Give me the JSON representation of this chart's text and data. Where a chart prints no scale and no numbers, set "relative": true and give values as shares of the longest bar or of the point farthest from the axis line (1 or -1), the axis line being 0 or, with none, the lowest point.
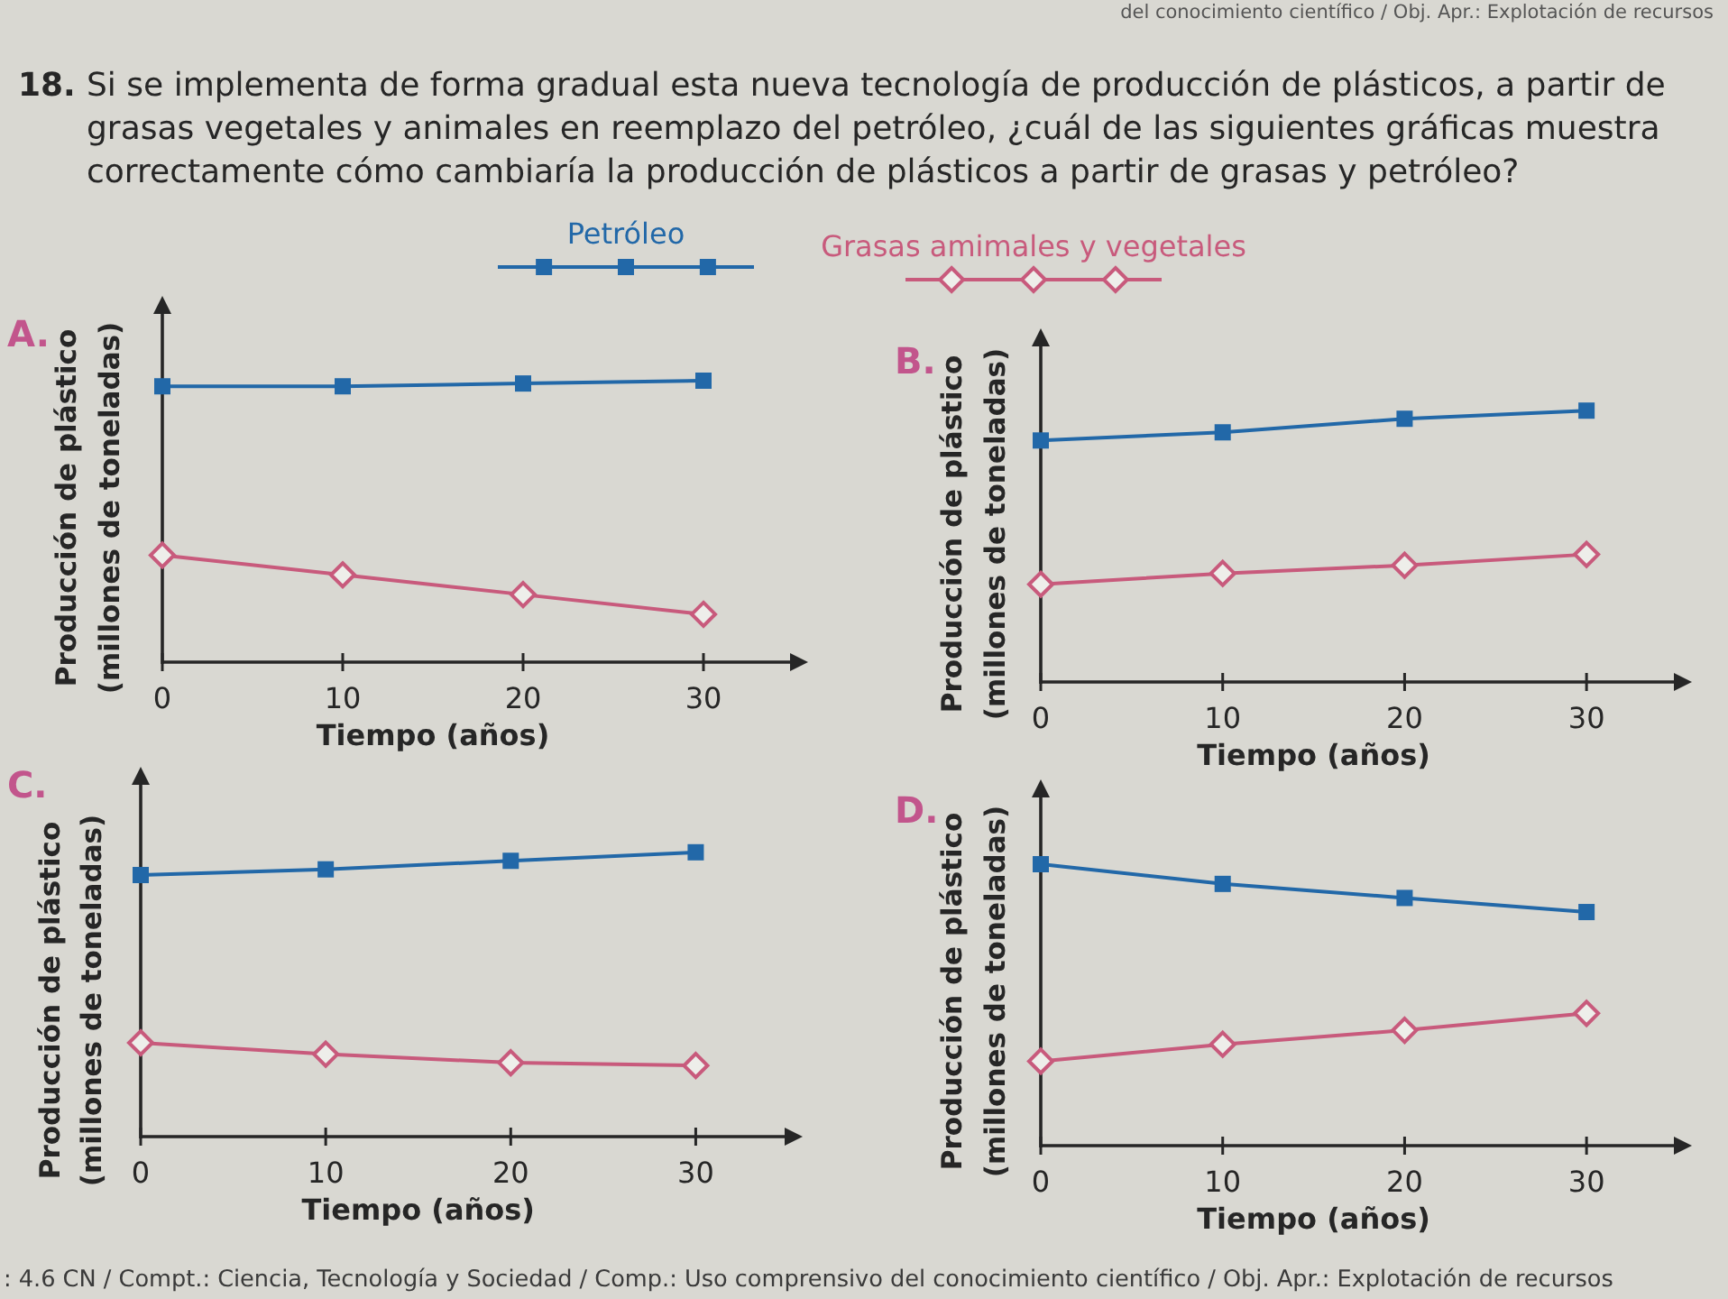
{
  "chart_data": [
    {
      "type": "other",
      "title": "18. Si se implementa de forma gradual esta nueva tecnología de producción de plásticos, a partir de grasas vegetales y animales en reemplazo del petróleo, ¿cuál de las siguientes gráficas muestra correctamente cómo cambiaría la producción de plásticos a partir de grasas y petróleo?",
      "annotations": [
        "del conocimiento científico / Obj. Apr.: Explotación de recursos",
        ": 4.6 CN / Compt.: Ciencia, Tecnología y Sociedad / Comp.: Uso comprensivo del conocimiento científico / Obj. Apr.: Explotación de recursos"
      ]
    },
    {
      "type": "line",
      "title": "A.",
      "xlabel": "Tiempo (años)",
      "ylabel": "Producción de plástico\n(millones de toneladas)",
      "x": [
        0,
        10,
        20,
        30
      ],
      "xlim": [
        0,
        35
      ],
      "xticks": [
        0,
        10,
        20,
        30
      ],
      "relative": true,
      "legend": "top",
      "series": [
        {
          "name": "Petróleo",
          "color": "#2268a8",
          "marker": "square",
          "values": [
            0.98,
            0.98,
            0.99,
            1
          ]
        },
        {
          "name": "Grasas amimales y vegetales",
          "color": "#c85a7c",
          "marker": "diamond",
          "values": [
            0.38,
            0.31,
            0.24,
            0.17
          ]
        }
      ]
    },
    {
      "type": "line",
      "title": "B.",
      "xlabel": "Tiempo (años)",
      "ylabel": "Producción de plástico\n(millones de toneladas)",
      "x": [
        0,
        10,
        20,
        30
      ],
      "xlim": [
        0,
        35
      ],
      "xticks": [
        0,
        10,
        20,
        30
      ],
      "relative": true,
      "series": [
        {
          "color": "#2268a8",
          "marker": "square",
          "values": [
            0.89,
            0.92,
            0.97,
            1
          ]
        },
        {
          "color": "#c85a7c",
          "marker": "diamond",
          "values": [
            0.36,
            0.4,
            0.43,
            0.47
          ]
        }
      ]
    },
    {
      "type": "line",
      "title": "C.",
      "xlabel": "Tiempo (años)",
      "ylabel": "Producción de plástico\n(millones de toneladas)",
      "x": [
        0,
        10,
        20,
        30
      ],
      "xlim": [
        0,
        35
      ],
      "xticks": [
        0,
        10,
        20,
        30
      ],
      "relative": true,
      "series": [
        {
          "color": "#2268a8",
          "marker": "square",
          "values": [
            0.92,
            0.94,
            0.97,
            1
          ]
        },
        {
          "color": "#c85a7c",
          "marker": "diamond",
          "values": [
            0.33,
            0.29,
            0.26,
            0.25
          ]
        }
      ]
    },
    {
      "type": "line",
      "title": "D.",
      "xlabel": "Tiempo (años)",
      "ylabel": "Producción de plástico\n(millones de toneladas)",
      "x": [
        0,
        10,
        20,
        30
      ],
      "xlim": [
        0,
        35
      ],
      "xticks": [
        0,
        10,
        20,
        30
      ],
      "relative": true,
      "series": [
        {
          "color": "#2268a8",
          "marker": "square",
          "values": [
            1,
            0.93,
            0.88,
            0.83
          ]
        },
        {
          "color": "#c85a7c",
          "marker": "diamond",
          "values": [
            0.3,
            0.36,
            0.41,
            0.47
          ]
        }
      ]
    }
  ]
}
